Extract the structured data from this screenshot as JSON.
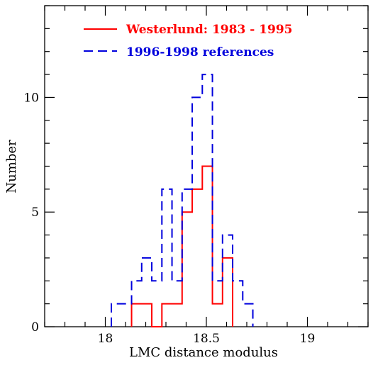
{
  "chart_data": {
    "type": "histogram",
    "xlabel": "LMC distance modulus",
    "ylabel": "Number",
    "xlim": [
      17.7,
      19.3
    ],
    "ylim": [
      0,
      14
    ],
    "x_ticks": [
      {
        "value": 18,
        "label": "18"
      },
      {
        "value": 18.5,
        "label": "18.5"
      },
      {
        "value": 19,
        "label": "19"
      }
    ],
    "y_ticks": [
      {
        "value": 0,
        "label": "0"
      },
      {
        "value": 5,
        "label": "5"
      },
      {
        "value": 10,
        "label": "10"
      }
    ],
    "x_minor_step": 0.1,
    "y_minor_step": 1,
    "bin_width": 0.05,
    "series": [
      {
        "name": "Westerlund: 1983 - 1995",
        "color": "#ff0000",
        "dash": "solid",
        "bins": [
          {
            "x": 18.13,
            "count": 1
          },
          {
            "x": 18.18,
            "count": 1
          },
          {
            "x": 18.23,
            "count": 0
          },
          {
            "x": 18.28,
            "count": 1
          },
          {
            "x": 18.33,
            "count": 1
          },
          {
            "x": 18.38,
            "count": 5
          },
          {
            "x": 18.43,
            "count": 6
          },
          {
            "x": 18.48,
            "count": 7
          },
          {
            "x": 18.53,
            "count": 1
          },
          {
            "x": 18.58,
            "count": 3
          }
        ]
      },
      {
        "name": "1996-1998 references",
        "color": "#0000dd",
        "dash": "dashed",
        "bins": [
          {
            "x": 18.03,
            "count": 1
          },
          {
            "x": 18.08,
            "count": 1
          },
          {
            "x": 18.13,
            "count": 2
          },
          {
            "x": 18.18,
            "count": 3
          },
          {
            "x": 18.23,
            "count": 2
          },
          {
            "x": 18.28,
            "count": 6
          },
          {
            "x": 18.33,
            "count": 2
          },
          {
            "x": 18.38,
            "count": 6
          },
          {
            "x": 18.43,
            "count": 10
          },
          {
            "x": 18.48,
            "count": 11
          },
          {
            "x": 18.53,
            "count": 2
          },
          {
            "x": 18.58,
            "count": 4
          },
          {
            "x": 18.63,
            "count": 2
          },
          {
            "x": 18.68,
            "count": 1
          }
        ]
      }
    ],
    "legend_position": "top-left"
  }
}
